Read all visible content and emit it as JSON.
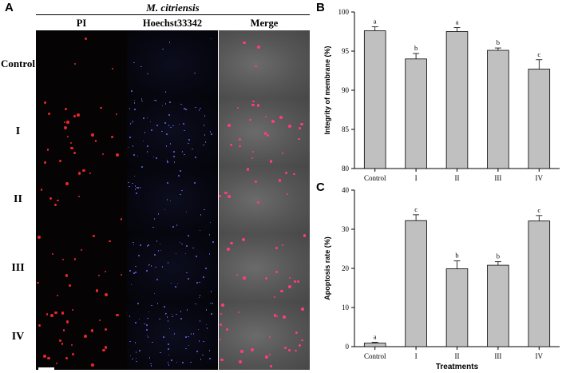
{
  "panels": {
    "a": "A",
    "b": "B",
    "c": "C"
  },
  "micrographs": {
    "species": "M. citriensis",
    "columns": [
      "PI",
      "Hoechst33342",
      "Merge"
    ],
    "rows": [
      "Control",
      "I",
      "II",
      "III",
      "IV"
    ]
  },
  "chart_data": [
    {
      "type": "bar",
      "categories": [
        "Control",
        "I",
        "II",
        "III",
        "IV"
      ],
      "values": [
        97.6,
        94.0,
        97.5,
        95.1,
        92.7
      ],
      "errors": [
        0.5,
        0.7,
        0.5,
        0.3,
        1.2
      ],
      "significance": [
        "a",
        "b",
        "a",
        "b",
        "c"
      ],
      "title": "",
      "xlabel": "",
      "ylabel": "Integrity of membrane (%)",
      "ylim": [
        80,
        100
      ],
      "yticks": [
        80,
        85,
        90,
        95,
        100
      ],
      "bar_color": "#c0c0c0"
    },
    {
      "type": "bar",
      "categories": [
        "Control",
        "I",
        "II",
        "III",
        "IV"
      ],
      "values": [
        0.9,
        32.2,
        19.9,
        20.8,
        32.1
      ],
      "errors": [
        0.2,
        1.5,
        2.0,
        0.9,
        1.4
      ],
      "significance": [
        "a",
        "c",
        "b",
        "b",
        "c"
      ],
      "title": "",
      "xlabel": "Treatments",
      "ylabel": "Apoptosis rate (%)",
      "ylim": [
        0,
        40
      ],
      "yticks": [
        0,
        10,
        20,
        30,
        40
      ],
      "bar_color": "#c0c0c0"
    }
  ]
}
